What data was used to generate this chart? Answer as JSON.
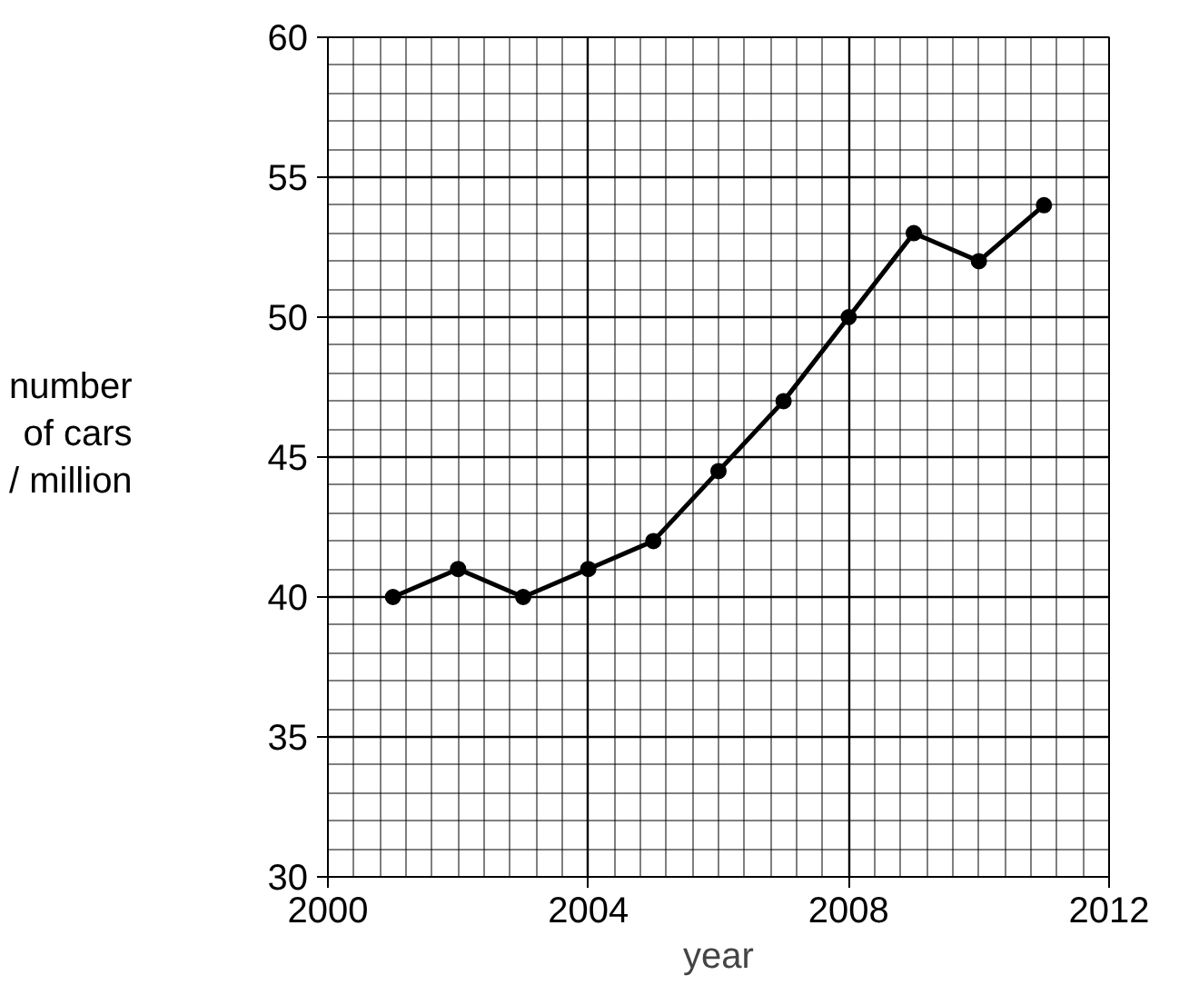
{
  "chart_data": {
    "type": "line",
    "xlabel": "year",
    "ylabel": "number\nof cars\n/ million",
    "x": [
      2001,
      2002,
      2003,
      2004,
      2005,
      2006,
      2007,
      2008,
      2009,
      2010,
      2011
    ],
    "series": [
      {
        "color": "#000000",
        "values": [
          40,
          41,
          40,
          41,
          42,
          44.5,
          47,
          50,
          53,
          52,
          54
        ]
      }
    ],
    "xlim": [
      2000,
      2012
    ],
    "ylim": [
      30,
      60
    ],
    "xticks": [
      2000,
      2004,
      2008,
      2012
    ],
    "yticks": [
      30,
      35,
      40,
      45,
      50,
      55,
      60
    ],
    "grid": true,
    "marker": "circle",
    "line_style": "solid"
  }
}
